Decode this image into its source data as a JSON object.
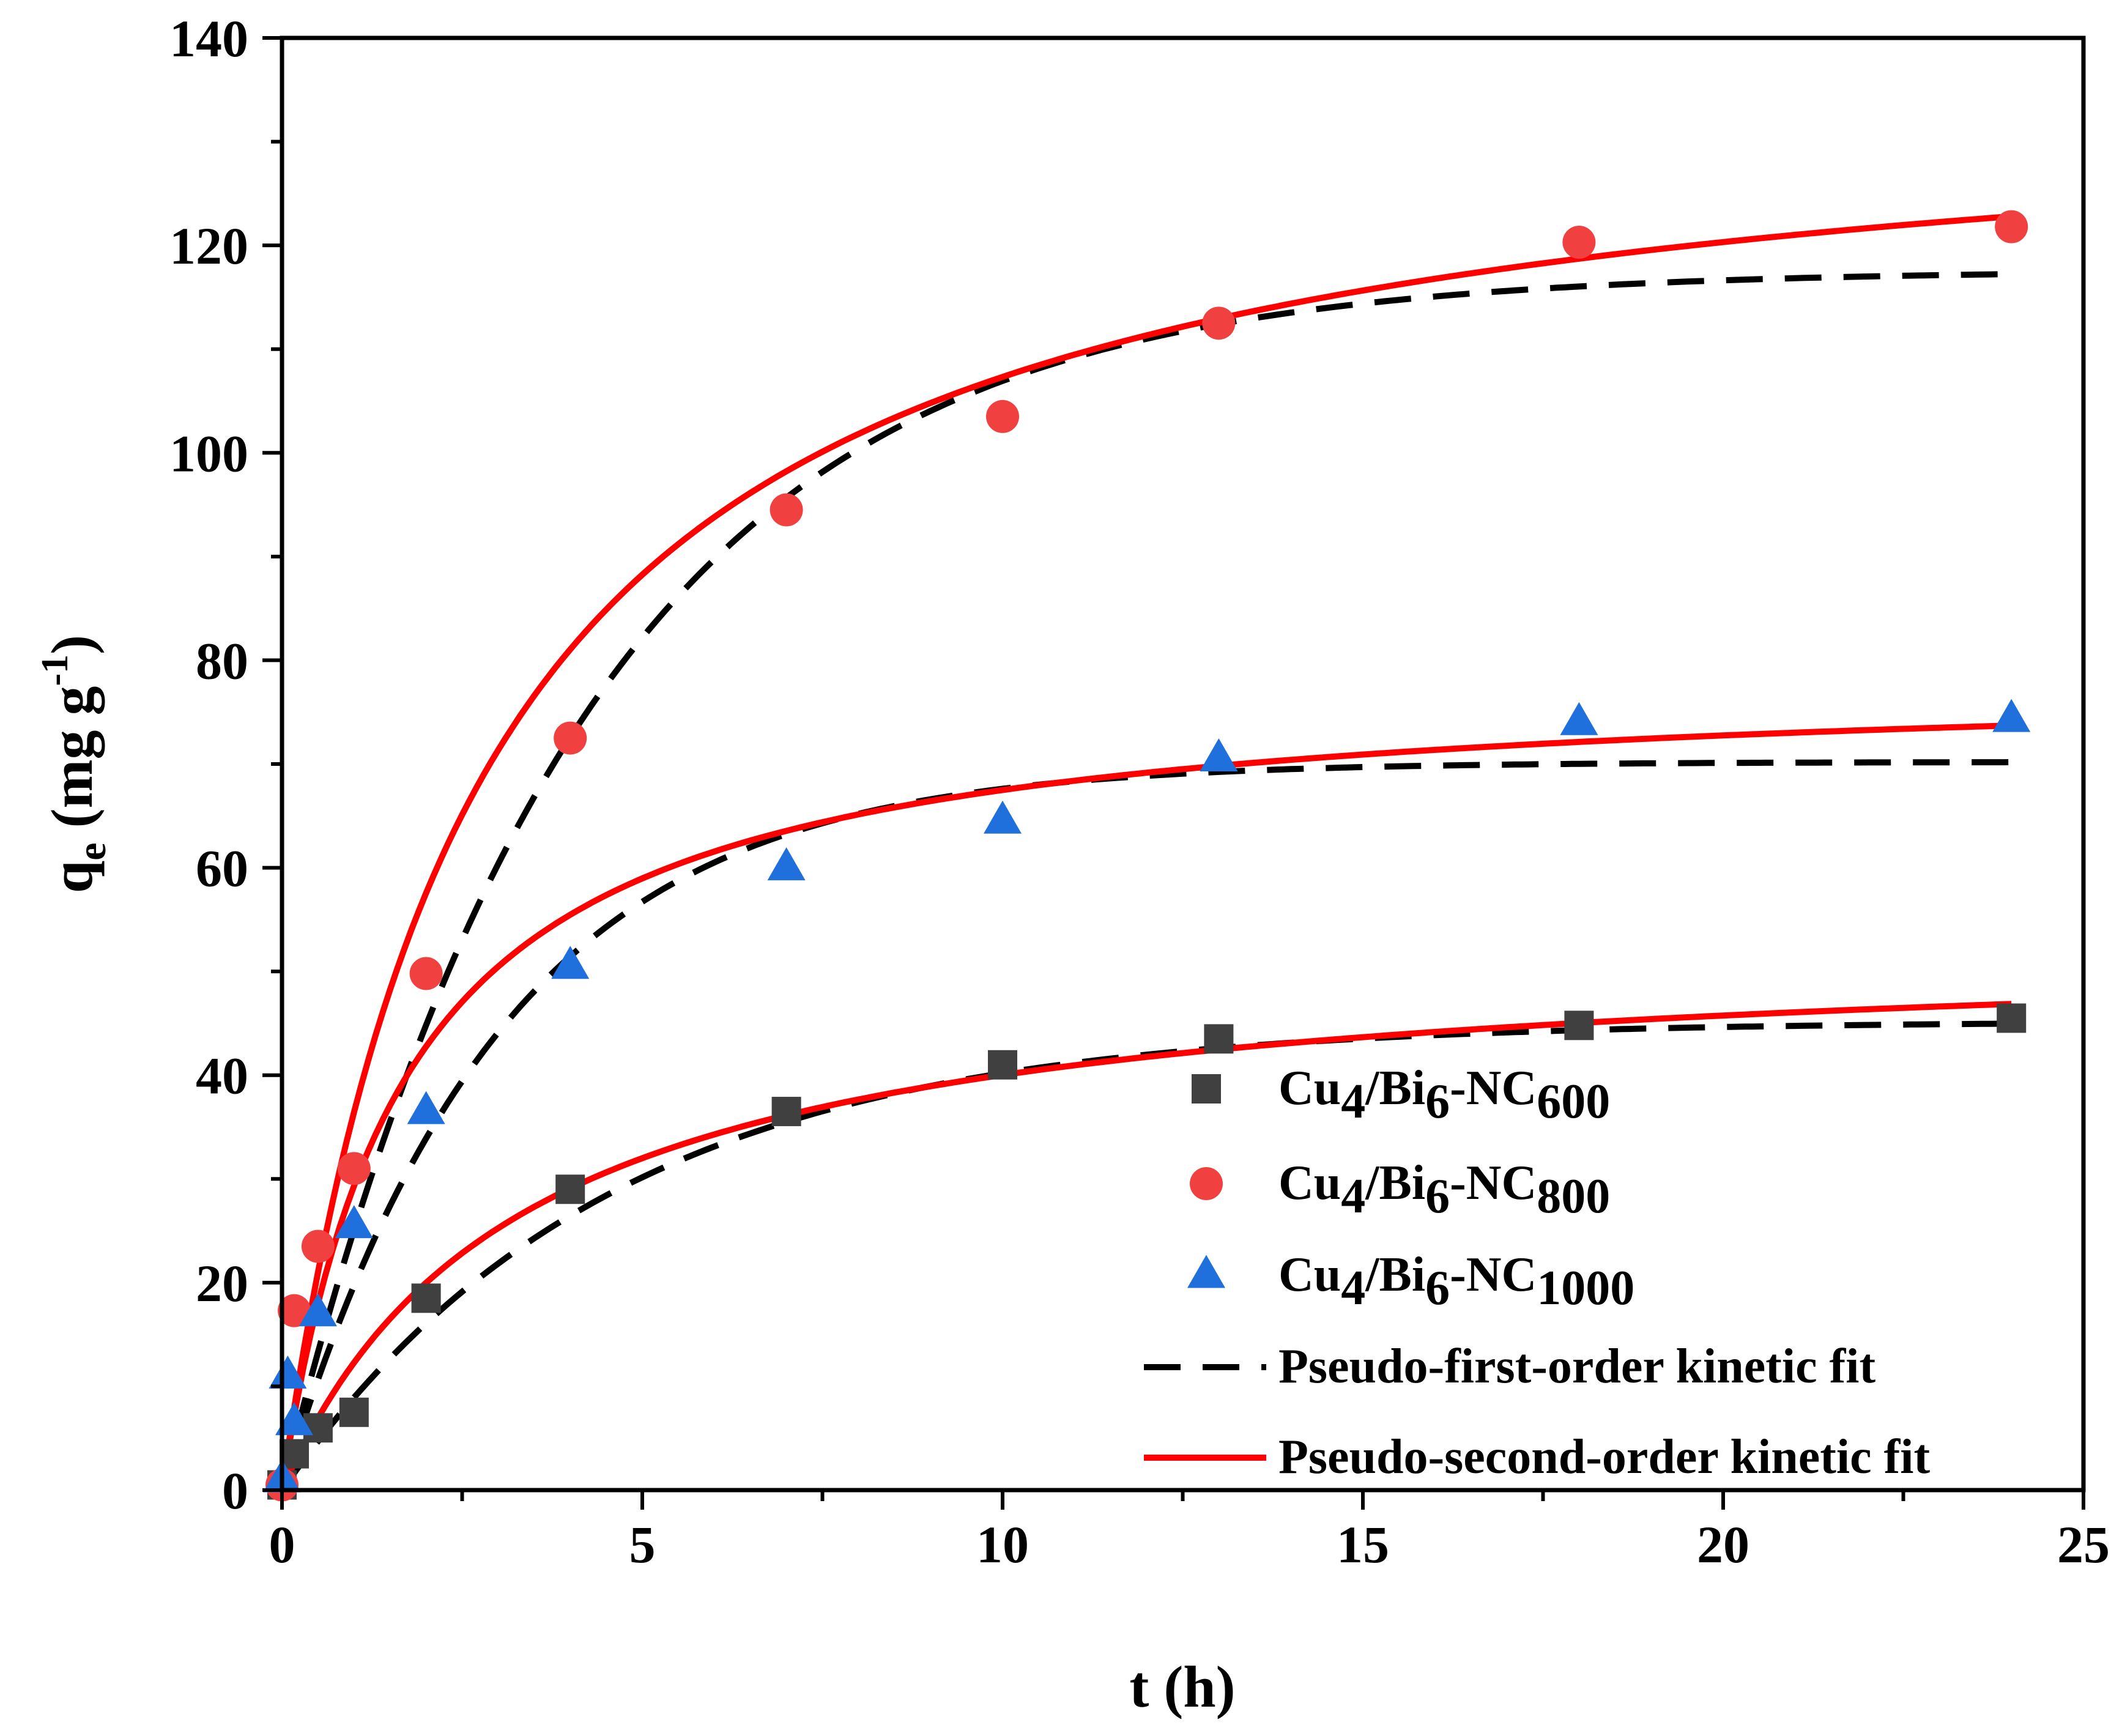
{
  "chart_data": {
    "type": "scatter",
    "xlabel": "t (h)",
    "ylabel": {
      "main": "q",
      "subscript": "e",
      "unit_open": " (mg g",
      "unit_sup": "-1",
      "unit_close": ")"
    },
    "xlim": [
      0,
      25
    ],
    "ylim": [
      0,
      140
    ],
    "xticks": [
      0,
      5,
      10,
      15,
      20,
      25
    ],
    "xtick_labels": [
      "0",
      "5",
      "10",
      "15",
      "20",
      "25"
    ],
    "yticks": [
      0,
      20,
      40,
      60,
      80,
      100,
      120,
      140
    ],
    "ytick_labels": [
      "0",
      "20",
      "40",
      "60",
      "80",
      "100",
      "120",
      "140"
    ],
    "grid": false,
    "legend_position": "bottom-right",
    "series": [
      {
        "name": "Cu4/Bi6-NC600",
        "label_parts": [
          [
            "Cu",
            false
          ],
          [
            "4",
            true
          ],
          [
            "/Bi",
            false
          ],
          [
            "6",
            true
          ],
          [
            "-NC",
            false
          ],
          [
            "600",
            true
          ]
        ],
        "marker": "square",
        "color": "#404040",
        "x": [
          0,
          0.17,
          0.5,
          1,
          2,
          4,
          7,
          10,
          13,
          18,
          24
        ],
        "y": [
          0.5,
          3.5,
          6,
          7.5,
          18.5,
          29,
          36.5,
          41,
          43.5,
          44.8,
          45.5
        ]
      },
      {
        "name": "Cu4/Bi6-NC800",
        "label_parts": [
          [
            "Cu",
            false
          ],
          [
            "4",
            true
          ],
          [
            "/Bi",
            false
          ],
          [
            "6",
            true
          ],
          [
            "-NC",
            false
          ],
          [
            "800",
            true
          ]
        ],
        "marker": "circle",
        "color": "#f04040",
        "x": [
          0,
          0.17,
          0.5,
          1,
          2,
          4,
          7,
          10,
          13,
          18,
          24
        ],
        "y": [
          0.5,
          17.3,
          23.5,
          31,
          49.8,
          72.5,
          94.5,
          103.5,
          112.5,
          120.3,
          121.8
        ]
      },
      {
        "name": "Cu4/Bi6-NC1000",
        "label_parts": [
          [
            "Cu",
            false
          ],
          [
            "4",
            true
          ],
          [
            "/Bi",
            false
          ],
          [
            "6",
            true
          ],
          [
            "-NC",
            false
          ],
          [
            "1000",
            true
          ]
        ],
        "marker": "triangle",
        "color": "#1f6fdc",
        "x": [
          0,
          0.08,
          0.17,
          0.5,
          1,
          2,
          4,
          7,
          10,
          13,
          18,
          24
        ],
        "y": [
          1,
          11,
          6.5,
          17,
          25.5,
          36.5,
          50.5,
          60,
          64.5,
          70.5,
          74,
          74.3
        ]
      }
    ],
    "fits": [
      {
        "name": "Pseudo-first-order kinetic fit",
        "style": "dashed",
        "color": "#000000",
        "model": "first",
        "params": [
          [
            45.2,
            0.22
          ],
          [
            70.2,
            0.33
          ],
          [
            117.6,
            0.24
          ]
        ]
      },
      {
        "name": "Pseudo-second-order kinetic fit",
        "style": "solid",
        "color": "#ff0000",
        "model": "second",
        "params": [
          [
            53.4,
            0.0056
          ],
          [
            78.9,
            0.0075
          ],
          [
            136.9,
            0.00265
          ]
        ]
      }
    ],
    "fit_t_max": 24
  }
}
